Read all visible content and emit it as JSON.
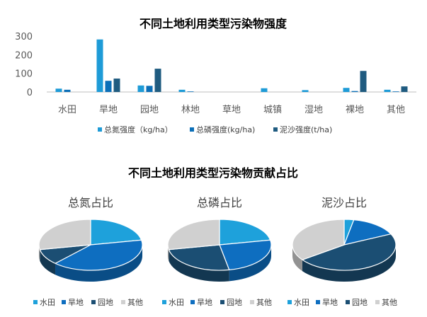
{
  "colors": {
    "nitrogen": "#1E9BD7",
    "phosphorus": "#0B6FB8",
    "sediment": "#1F5B80",
    "paddy": "#1EA1DB",
    "dryland": "#0E6EC0",
    "garden": "#1B4E73",
    "other": "#D0D0D0",
    "axis": "#595959"
  },
  "chart_data": [
    {
      "type": "bar",
      "title": "不同土地利用类型污染物强度",
      "categories": [
        "水田",
        "旱地",
        "园地",
        "林地",
        "草地",
        "城镇",
        "湿地",
        "裸地",
        "其他"
      ],
      "ylim": [
        0,
        300
      ],
      "yticks": [
        0,
        100,
        200,
        300
      ],
      "grid": false,
      "legend_position": "bottom",
      "series": [
        {
          "name": "总氮强度（kg/ha）",
          "values": [
            18,
            282,
            35,
            12,
            0,
            20,
            10,
            22,
            12
          ],
          "color_key": "nitrogen"
        },
        {
          "name": "总磷强度(kg/ha)",
          "values": [
            12,
            60,
            33,
            3,
            0,
            0,
            0,
            5,
            3
          ],
          "color_key": "phosphorus"
        },
        {
          "name": "泥沙强度(t/ha)",
          "values": [
            0,
            72,
            125,
            0,
            0,
            0,
            0,
            113,
            30
          ],
          "color_key": "sediment"
        }
      ]
    },
    {
      "type": "pie",
      "group_title": "不同土地利用类型污染物贡献占比",
      "title": "总氮占比",
      "labels": [
        "水田",
        "旱地",
        "园地",
        "其他"
      ],
      "values": [
        22,
        40,
        10,
        28
      ],
      "color_keys": [
        "paddy",
        "dryland",
        "garden",
        "other"
      ]
    },
    {
      "type": "pie",
      "title": "总磷占比",
      "labels": [
        "水田",
        "旱地",
        "园地",
        "其他"
      ],
      "values": [
        22,
        25,
        25,
        28
      ],
      "color_keys": [
        "paddy",
        "dryland",
        "garden",
        "other"
      ]
    },
    {
      "type": "pie",
      "title": "泥沙占比",
      "labels": [
        "水田",
        "旱地",
        "园地",
        "其他"
      ],
      "values": [
        3,
        15,
        47,
        35
      ],
      "color_keys": [
        "paddy",
        "dryland",
        "garden",
        "other"
      ]
    }
  ]
}
